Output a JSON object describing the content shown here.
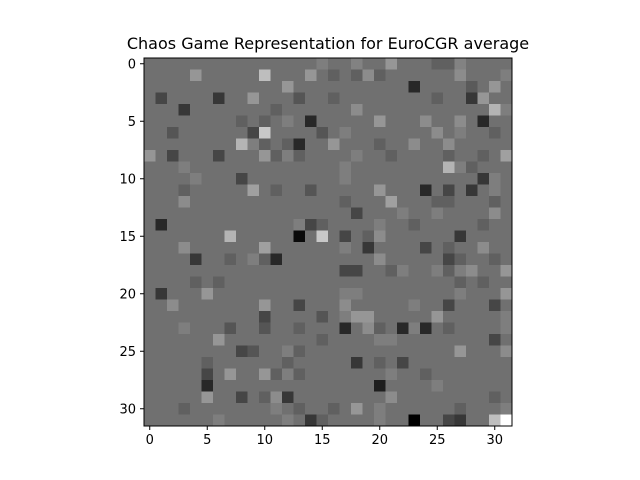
{
  "chart_data": {
    "type": "heatmap",
    "title": "Chaos Game Representation for EuroCGR average",
    "xlabel": "",
    "ylabel": "",
    "colormap": "gray",
    "rows": 32,
    "cols": 32,
    "xlim": [
      -0.5,
      31.5
    ],
    "ylim": [
      31.5,
      -0.5
    ],
    "xticks": [
      0,
      5,
      10,
      15,
      20,
      25,
      30
    ],
    "yticks": [
      0,
      5,
      10,
      15,
      20,
      25,
      30
    ],
    "background_value": 112,
    "cells": [
      [
        0,
        15,
        126
      ],
      [
        0,
        18,
        130
      ],
      [
        0,
        21,
        150
      ],
      [
        0,
        25,
        96
      ],
      [
        0,
        26,
        96
      ],
      [
        0,
        27,
        130
      ],
      [
        1,
        4,
        150
      ],
      [
        1,
        10,
        190
      ],
      [
        1,
        14,
        150
      ],
      [
        1,
        16,
        96
      ],
      [
        1,
        18,
        96
      ],
      [
        1,
        19,
        140
      ],
      [
        1,
        20,
        96
      ],
      [
        1,
        27,
        140
      ],
      [
        1,
        31,
        126
      ],
      [
        2,
        12,
        150
      ],
      [
        2,
        23,
        40
      ],
      [
        2,
        28,
        90
      ],
      [
        2,
        30,
        150
      ],
      [
        3,
        1,
        70
      ],
      [
        3,
        6,
        55
      ],
      [
        3,
        9,
        150
      ],
      [
        3,
        13,
        85
      ],
      [
        3,
        16,
        96
      ],
      [
        3,
        25,
        96
      ],
      [
        3,
        28,
        55
      ],
      [
        3,
        29,
        150
      ],
      [
        4,
        3,
        55
      ],
      [
        4,
        11,
        96
      ],
      [
        4,
        18,
        140
      ],
      [
        4,
        30,
        180
      ],
      [
        4,
        31,
        126
      ],
      [
        5,
        8,
        96
      ],
      [
        5,
        10,
        96
      ],
      [
        5,
        12,
        126
      ],
      [
        5,
        14,
        40
      ],
      [
        5,
        20,
        150
      ],
      [
        5,
        24,
        140
      ],
      [
        5,
        27,
        140
      ],
      [
        5,
        29,
        40
      ],
      [
        6,
        2,
        85
      ],
      [
        6,
        9,
        70
      ],
      [
        6,
        10,
        200
      ],
      [
        6,
        15,
        85
      ],
      [
        6,
        17,
        126
      ],
      [
        6,
        25,
        140
      ],
      [
        6,
        27,
        126
      ],
      [
        6,
        30,
        96
      ],
      [
        7,
        8,
        180
      ],
      [
        7,
        9,
        126
      ],
      [
        7,
        10,
        96
      ],
      [
        7,
        12,
        96
      ],
      [
        7,
        13,
        40
      ],
      [
        7,
        16,
        150
      ],
      [
        7,
        20,
        96
      ],
      [
        7,
        23,
        140
      ],
      [
        7,
        26,
        140
      ],
      [
        8,
        0,
        150
      ],
      [
        8,
        2,
        70
      ],
      [
        8,
        6,
        70
      ],
      [
        8,
        10,
        150
      ],
      [
        8,
        11,
        96
      ],
      [
        8,
        12,
        126
      ],
      [
        8,
        13,
        96
      ],
      [
        8,
        18,
        126
      ],
      [
        8,
        21,
        96
      ],
      [
        8,
        26,
        96
      ],
      [
        8,
        29,
        96
      ],
      [
        8,
        31,
        160
      ],
      [
        9,
        3,
        126
      ],
      [
        9,
        17,
        126
      ],
      [
        9,
        26,
        180
      ],
      [
        9,
        27,
        126
      ],
      [
        9,
        28,
        96
      ],
      [
        10,
        4,
        126
      ],
      [
        10,
        8,
        70
      ],
      [
        10,
        17,
        126
      ],
      [
        10,
        29,
        55
      ],
      [
        10,
        30,
        126
      ],
      [
        11,
        3,
        96
      ],
      [
        11,
        9,
        160
      ],
      [
        11,
        11,
        96
      ],
      [
        11,
        14,
        85
      ],
      [
        11,
        20,
        150
      ],
      [
        11,
        24,
        40
      ],
      [
        11,
        26,
        70
      ],
      [
        11,
        28,
        55
      ],
      [
        11,
        30,
        126
      ],
      [
        12,
        3,
        140
      ],
      [
        12,
        17,
        96
      ],
      [
        12,
        21,
        160
      ],
      [
        12,
        25,
        96
      ],
      [
        12,
        26,
        96
      ],
      [
        12,
        30,
        96
      ],
      [
        13,
        18,
        70
      ],
      [
        13,
        22,
        126
      ],
      [
        13,
        25,
        126
      ],
      [
        13,
        30,
        140
      ],
      [
        14,
        1,
        40
      ],
      [
        14,
        13,
        126
      ],
      [
        14,
        14,
        70
      ],
      [
        14,
        15,
        96
      ],
      [
        14,
        20,
        126
      ],
      [
        14,
        23,
        96
      ],
      [
        14,
        29,
        96
      ],
      [
        15,
        7,
        180
      ],
      [
        15,
        13,
        10
      ],
      [
        15,
        15,
        200
      ],
      [
        15,
        17,
        70
      ],
      [
        15,
        19,
        96
      ],
      [
        15,
        20,
        140
      ],
      [
        15,
        27,
        55
      ],
      [
        16,
        3,
        140
      ],
      [
        16,
        10,
        160
      ],
      [
        16,
        17,
        126
      ],
      [
        16,
        19,
        55
      ],
      [
        16,
        24,
        70
      ],
      [
        16,
        26,
        96
      ],
      [
        16,
        29,
        140
      ],
      [
        17,
        4,
        55
      ],
      [
        17,
        7,
        96
      ],
      [
        17,
        9,
        126
      ],
      [
        17,
        10,
        96
      ],
      [
        17,
        11,
        40
      ],
      [
        17,
        20,
        140
      ],
      [
        17,
        26,
        70
      ],
      [
        17,
        27,
        96
      ],
      [
        17,
        30,
        96
      ],
      [
        18,
        17,
        70
      ],
      [
        18,
        18,
        70
      ],
      [
        18,
        21,
        96
      ],
      [
        18,
        22,
        126
      ],
      [
        18,
        25,
        126
      ],
      [
        18,
        26,
        96
      ],
      [
        18,
        27,
        126
      ],
      [
        18,
        28,
        140
      ],
      [
        18,
        31,
        150
      ],
      [
        19,
        4,
        96
      ],
      [
        19,
        6,
        96
      ],
      [
        19,
        27,
        96
      ],
      [
        19,
        29,
        96
      ],
      [
        20,
        1,
        55
      ],
      [
        20,
        5,
        150
      ],
      [
        20,
        17,
        126
      ],
      [
        20,
        18,
        126
      ],
      [
        20,
        27,
        126
      ],
      [
        20,
        31,
        150
      ],
      [
        21,
        2,
        140
      ],
      [
        21,
        10,
        150
      ],
      [
        21,
        13,
        70
      ],
      [
        21,
        17,
        140
      ],
      [
        21,
        23,
        126
      ],
      [
        21,
        26,
        70
      ],
      [
        21,
        30,
        70
      ],
      [
        22,
        10,
        70
      ],
      [
        22,
        15,
        85
      ],
      [
        22,
        17,
        126
      ],
      [
        22,
        18,
        150
      ],
      [
        22,
        19,
        150
      ],
      [
        22,
        25,
        150
      ],
      [
        22,
        31,
        126
      ],
      [
        23,
        3,
        126
      ],
      [
        23,
        7,
        85
      ],
      [
        23,
        10,
        85
      ],
      [
        23,
        13,
        96
      ],
      [
        23,
        17,
        40
      ],
      [
        23,
        19,
        140
      ],
      [
        23,
        20,
        96
      ],
      [
        23,
        22,
        40
      ],
      [
        23,
        23,
        126
      ],
      [
        23,
        24,
        40
      ],
      [
        23,
        26,
        96
      ],
      [
        23,
        31,
        126
      ],
      [
        24,
        6,
        150
      ],
      [
        24,
        15,
        96
      ],
      [
        24,
        20,
        126
      ],
      [
        24,
        21,
        126
      ],
      [
        24,
        30,
        70
      ],
      [
        25,
        8,
        70
      ],
      [
        25,
        9,
        85
      ],
      [
        25,
        12,
        126
      ],
      [
        25,
        13,
        96
      ],
      [
        25,
        27,
        150
      ],
      [
        25,
        31,
        140
      ],
      [
        26,
        5,
        96
      ],
      [
        26,
        12,
        96
      ],
      [
        26,
        18,
        55
      ],
      [
        26,
        20,
        96
      ],
      [
        26,
        22,
        70
      ],
      [
        27,
        5,
        70
      ],
      [
        27,
        7,
        150
      ],
      [
        27,
        10,
        150
      ],
      [
        27,
        11,
        96
      ],
      [
        27,
        12,
        126
      ],
      [
        27,
        13,
        96
      ],
      [
        27,
        21,
        126
      ],
      [
        27,
        24,
        96
      ],
      [
        28,
        5,
        40
      ],
      [
        28,
        20,
        30
      ],
      [
        28,
        25,
        126
      ],
      [
        29,
        5,
        150
      ],
      [
        29,
        8,
        70
      ],
      [
        29,
        10,
        96
      ],
      [
        29,
        11,
        140
      ],
      [
        29,
        12,
        55
      ],
      [
        29,
        21,
        140
      ],
      [
        29,
        30,
        96
      ],
      [
        30,
        3,
        96
      ],
      [
        30,
        11,
        126
      ],
      [
        30,
        13,
        96
      ],
      [
        30,
        16,
        96
      ],
      [
        30,
        18,
        150
      ],
      [
        30,
        20,
        126
      ],
      [
        30,
        27,
        96
      ],
      [
        30,
        31,
        126
      ],
      [
        31,
        6,
        126
      ],
      [
        31,
        12,
        126
      ],
      [
        31,
        14,
        55
      ],
      [
        31,
        15,
        96
      ],
      [
        31,
        20,
        126
      ],
      [
        31,
        23,
        0
      ],
      [
        31,
        26,
        70
      ],
      [
        31,
        27,
        55
      ],
      [
        31,
        30,
        190
      ],
      [
        31,
        31,
        255
      ]
    ]
  }
}
